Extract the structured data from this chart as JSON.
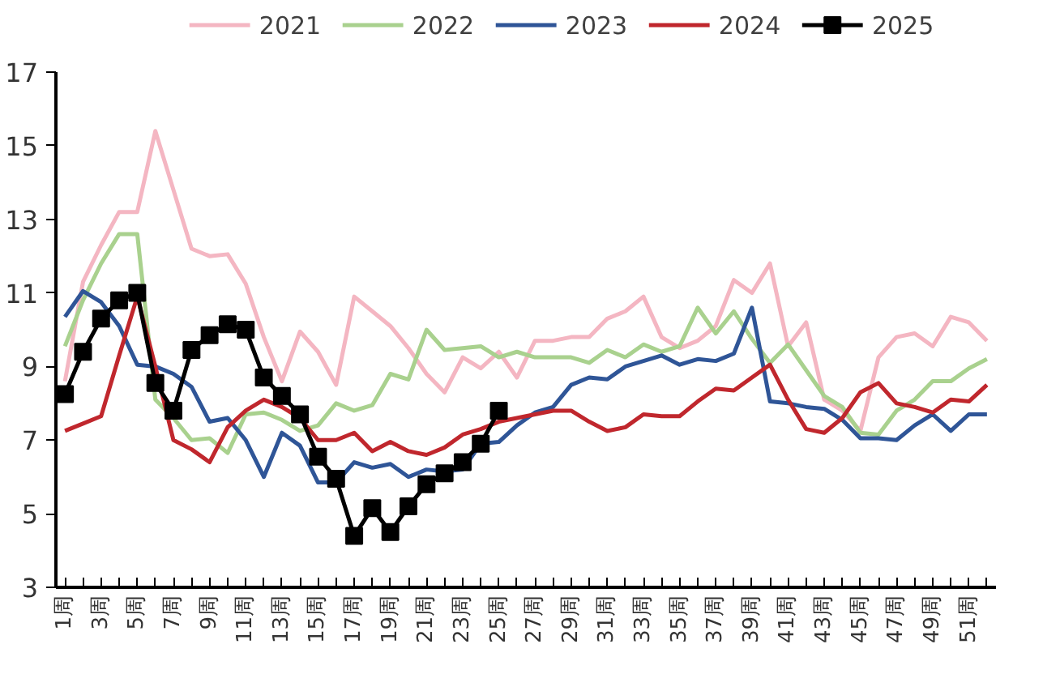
{
  "chart_data": {
    "type": "line",
    "categories": [
      "1周",
      null,
      "3周",
      null,
      "5周",
      null,
      "7周",
      null,
      "9周",
      null,
      "11周",
      null,
      "13周",
      null,
      "15周",
      null,
      "17周",
      null,
      "19周",
      null,
      "21周",
      null,
      "23周",
      null,
      "25周",
      null,
      "27周",
      null,
      "29周",
      null,
      "31周",
      null,
      "33周",
      null,
      "35周",
      null,
      "37周",
      null,
      "39周",
      null,
      "41周",
      null,
      "43周",
      null,
      "45周",
      null,
      "47周",
      null,
      "49周",
      null,
      "51周",
      null
    ],
    "ylim": [
      3,
      17
    ],
    "yticks": [
      3,
      5,
      7,
      9,
      11,
      13,
      15,
      17
    ],
    "grid": false,
    "legend": "top",
    "marker": "none",
    "series": [
      {
        "name": "2021",
        "color": "#f4b6c2",
        "values": [
          8.6,
          11.3,
          12.3,
          13.2,
          13.2,
          15.4,
          13.8,
          12.2,
          12.0,
          12.05,
          11.25,
          9.8,
          8.6,
          9.95,
          9.4,
          8.5,
          10.9,
          10.5,
          10.1,
          9.5,
          8.8,
          8.3,
          9.25,
          8.95,
          9.4,
          8.7,
          9.7,
          9.7,
          9.8,
          9.8,
          10.3,
          10.5,
          10.9,
          9.8,
          9.5,
          9.7,
          10.1,
          11.35,
          11.0,
          11.8,
          9.55,
          10.2,
          8.1,
          7.8,
          7.25,
          9.25,
          9.8,
          9.9,
          9.55,
          10.35,
          10.2,
          9.7
        ]
      },
      {
        "name": "2022",
        "color": "#a9d18e",
        "values": [
          9.55,
          10.8,
          11.8,
          12.6,
          12.6,
          8.1,
          7.6,
          7.0,
          7.05,
          6.65,
          7.7,
          7.75,
          7.55,
          7.25,
          7.4,
          8.0,
          7.8,
          7.95,
          8.8,
          8.65,
          10.0,
          9.45,
          9.5,
          9.55,
          9.25,
          9.4,
          9.25,
          9.25,
          9.25,
          9.1,
          9.45,
          9.25,
          9.6,
          9.4,
          9.55,
          10.6,
          9.9,
          10.5,
          9.75,
          9.1,
          9.6,
          8.9,
          8.2,
          7.9,
          7.2,
          7.15,
          7.8,
          8.1,
          8.6,
          8.6,
          8.95,
          9.2
        ]
      },
      {
        "name": "2023",
        "color": "#2f5597",
        "values": [
          10.35,
          11.05,
          10.75,
          10.1,
          9.05,
          9.0,
          8.8,
          8.45,
          7.5,
          7.6,
          7.0,
          6.0,
          7.2,
          6.85,
          5.85,
          5.85,
          6.4,
          6.25,
          6.35,
          6.0,
          6.2,
          6.15,
          6.2,
          6.9,
          6.95,
          7.4,
          7.75,
          7.9,
          8.5,
          8.7,
          8.65,
          9.0,
          9.15,
          9.3,
          9.05,
          9.2,
          9.15,
          9.35,
          10.6,
          8.05,
          8.0,
          7.9,
          7.85,
          7.55,
          7.05,
          7.05,
          7.0,
          7.4,
          7.7,
          7.25,
          7.7,
          7.7
        ]
      },
      {
        "name": "2024",
        "color": "#c0272d",
        "values": [
          7.25,
          7.45,
          7.65,
          9.3,
          10.9,
          9.0,
          7.0,
          6.75,
          6.4,
          7.35,
          7.8,
          8.1,
          7.9,
          7.6,
          7.0,
          7.0,
          7.2,
          6.7,
          6.95,
          6.7,
          6.6,
          6.8,
          7.15,
          7.3,
          7.5,
          7.6,
          7.7,
          7.8,
          7.8,
          7.5,
          7.25,
          7.35,
          7.7,
          7.65,
          7.65,
          8.05,
          8.4,
          8.35,
          8.7,
          9.05,
          8.1,
          7.3,
          7.2,
          7.6,
          8.3,
          8.55,
          8.0,
          7.9,
          7.75,
          8.1,
          8.05,
          8.5
        ]
      },
      {
        "name": "2025",
        "color": "#000000",
        "marker": "square",
        "values": [
          8.25,
          9.4,
          10.3,
          10.8,
          11.0,
          8.55,
          7.8,
          9.45,
          9.85,
          10.15,
          10.0,
          8.7,
          8.2,
          7.7,
          6.55,
          5.95,
          4.4,
          5.15,
          4.5,
          5.2,
          5.8,
          6.1,
          6.4,
          6.9,
          7.8,
          null,
          null,
          null,
          null,
          null,
          null,
          null,
          null,
          null,
          null,
          null,
          null,
          null,
          null,
          null,
          null,
          null,
          null,
          null,
          null,
          null,
          null,
          null,
          null,
          null,
          null,
          null
        ]
      }
    ]
  }
}
